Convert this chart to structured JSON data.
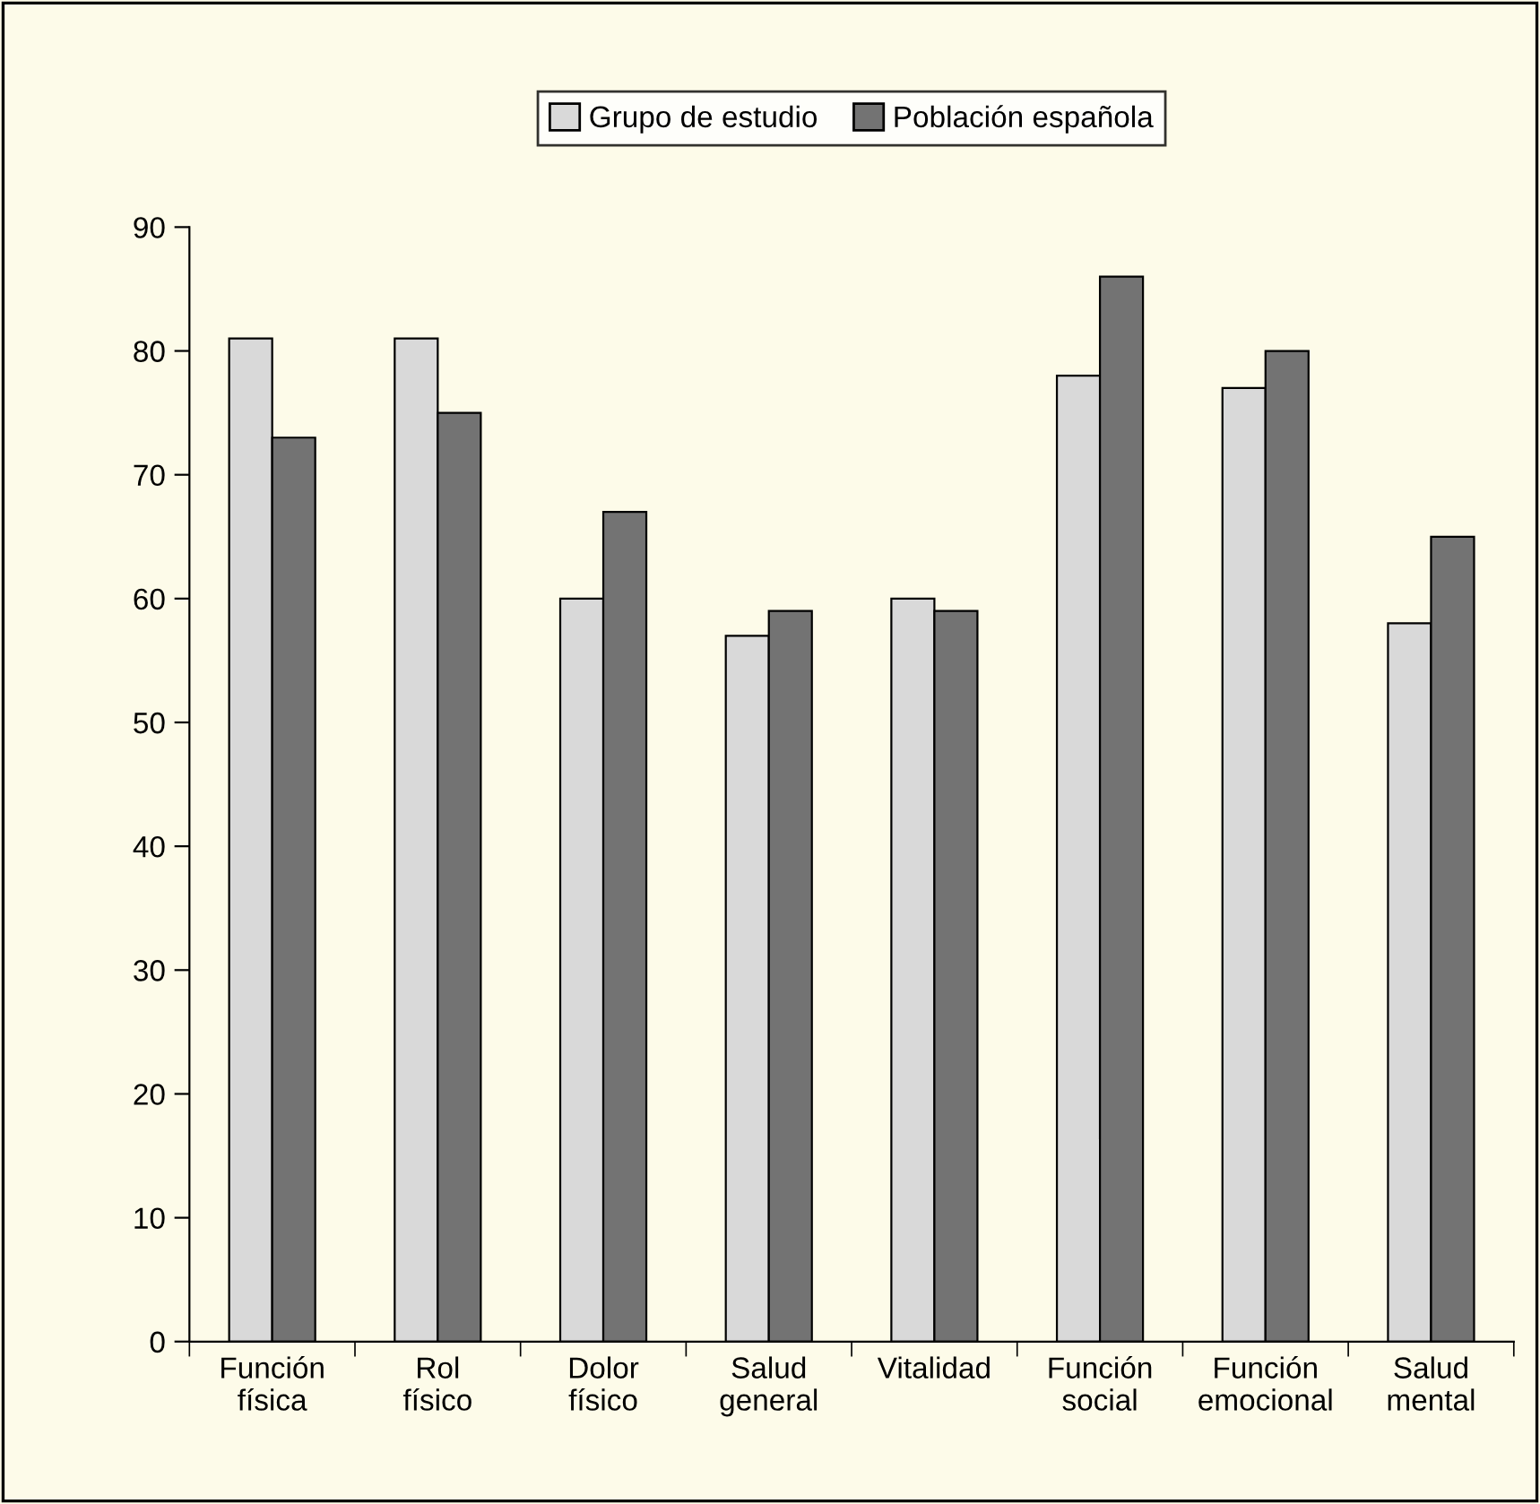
{
  "chart_data": {
    "type": "bar",
    "categories": [
      "Función\nfísica",
      "Rol\nfísico",
      "Dolor\nfísico",
      "Salud\ngeneral",
      "Vitalidad",
      "Función\nsocial",
      "Función\nemocional",
      "Salud\nmental"
    ],
    "series": [
      {
        "name": "Grupo de estudio",
        "color": "#d9d9d9",
        "values": [
          81,
          81,
          60,
          57,
          60,
          78,
          77,
          58
        ]
      },
      {
        "name": "Población española",
        "color": "#737373",
        "values": [
          73,
          75,
          67,
          59,
          59,
          86,
          80,
          65
        ]
      }
    ],
    "ylim": [
      0,
      90
    ],
    "yticks": [
      0,
      10,
      20,
      30,
      40,
      50,
      60,
      70,
      80,
      90
    ],
    "grid": false,
    "legend": "top"
  }
}
